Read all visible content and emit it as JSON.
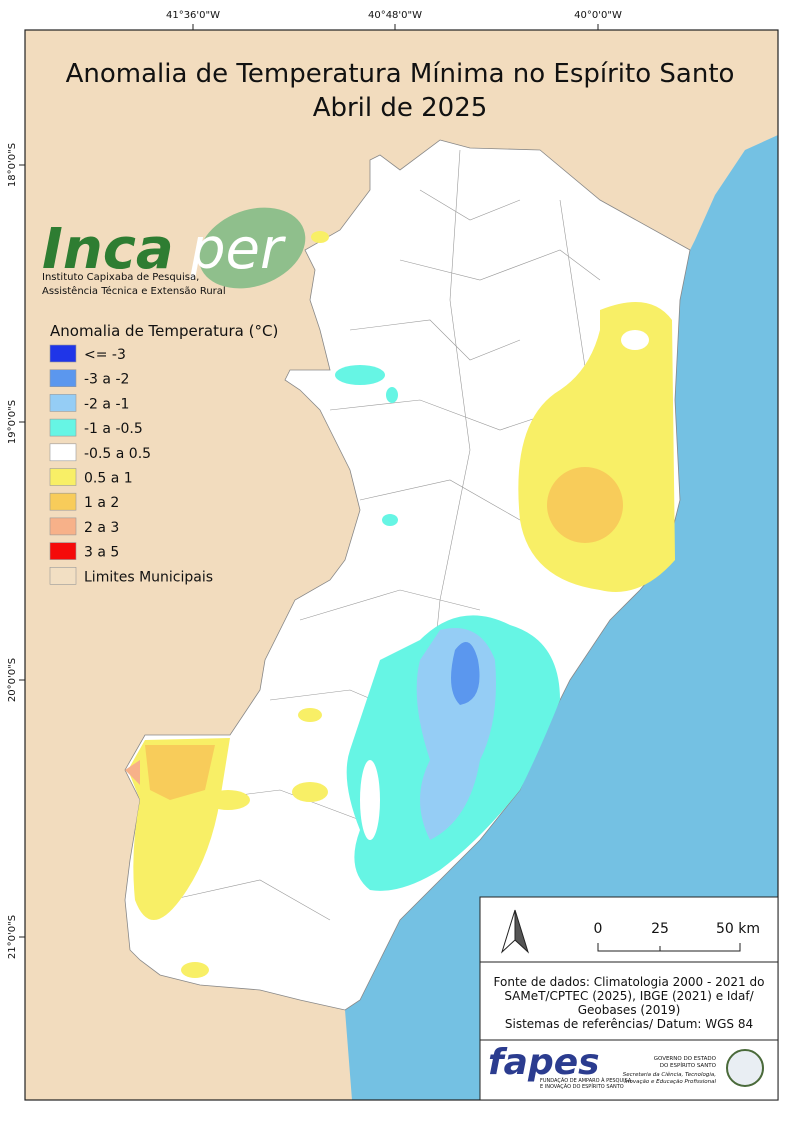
{
  "title": [
    "Anomalia de Temperatura Mínima no Espírito Santo",
    "Abril de 2025"
  ],
  "graticule": {
    "top": [
      "41°36'0\"W",
      "40°48'0\"W",
      "40°0'0\"W"
    ],
    "left": [
      "18°0'0\"S",
      "19°0'0\"S",
      "20°0'0\"S",
      "21°0'0\"S"
    ]
  },
  "logo": {
    "name": [
      "Inca",
      "per"
    ],
    "subtitle": [
      "Instituto Capixaba de Pesquisa,",
      "Assistência Técnica e Extensão Rural"
    ]
  },
  "legend": {
    "title": "Anomalia de Temperatura (°C)",
    "items": [
      {
        "label": "<= -3",
        "color": "#1f35e8"
      },
      {
        "label": "-3 a -2",
        "color": "#5b97ee"
      },
      {
        "label": "-2 a -1",
        "color": "#95cdf5"
      },
      {
        "label": "-1 a -0.5",
        "color": "#66f5e4"
      },
      {
        "label": "-0.5 a 0.5",
        "color": "#ffffff"
      },
      {
        "label": "0.5 a 1",
        "color": "#f8ef66"
      },
      {
        "label": "1 a 2",
        "color": "#f8cc5a"
      },
      {
        "label": "2 a 3",
        "color": "#f7b189"
      },
      {
        "label": "3 a 5",
        "color": "#f50a0a"
      },
      {
        "label": "Limites Municipais",
        "color": "#f2dfc3"
      }
    ]
  },
  "scale_bar": {
    "labels": [
      "0",
      "25",
      "50 km"
    ]
  },
  "source": [
    "Fonte de dados: Climatologia 2000 - 2021 do",
    "SAMeT/CPTEC (2025), IBGE (2021) e Idaf/",
    "Geobases (2019)",
    "Sistemas de referências/ Datum: WGS 84"
  ],
  "footer": {
    "fapes": "fapes",
    "fapes_subtitle": [
      "FUNDAÇÃO DE AMPARO À PESQUISA",
      "E INOVAÇÃO DO ESPÍRITO SANTO"
    ],
    "government": [
      "GOVERNO DO ESTADO",
      "DO ESPÍRITO SANTO"
    ],
    "secretariat": [
      "Secretaria da Ciência, Tecnologia,",
      "Inovação e Educação Profissional"
    ]
  }
}
